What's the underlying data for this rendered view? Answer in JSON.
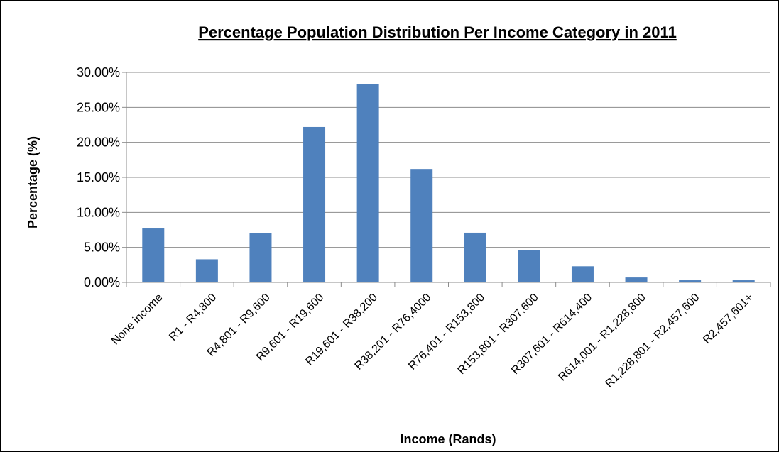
{
  "chart_data": {
    "type": "bar",
    "title": "Percentage Population Distribution Per Income Category in 2011",
    "xlabel": "Income (Rands)",
    "ylabel": "Percentage (%)",
    "categories": [
      "None income",
      "R1 - R4,800",
      "R4,801 - R9,600",
      "R9,601 - R19,600",
      "R19,601 - R38,200",
      "R38,201 - R76,4000",
      "R76,401 - R153,800",
      "R153,801 - R307,600",
      "R307,601 - R614,400",
      "R614,001 - R1,228,800",
      "R1,228,801 - R2,457,600",
      "R2,457,601+"
    ],
    "values": [
      7.7,
      3.3,
      7.0,
      22.2,
      28.3,
      16.2,
      7.1,
      4.6,
      2.3,
      0.7,
      0.3,
      0.3
    ],
    "ylim": [
      0,
      30
    ],
    "yticks": [
      "0.00%",
      "5.00%",
      "10.00%",
      "15.00%",
      "20.00%",
      "25.00%",
      "30.00%"
    ],
    "grid": true,
    "legend": "none",
    "bar_color": "#4F81BD"
  }
}
